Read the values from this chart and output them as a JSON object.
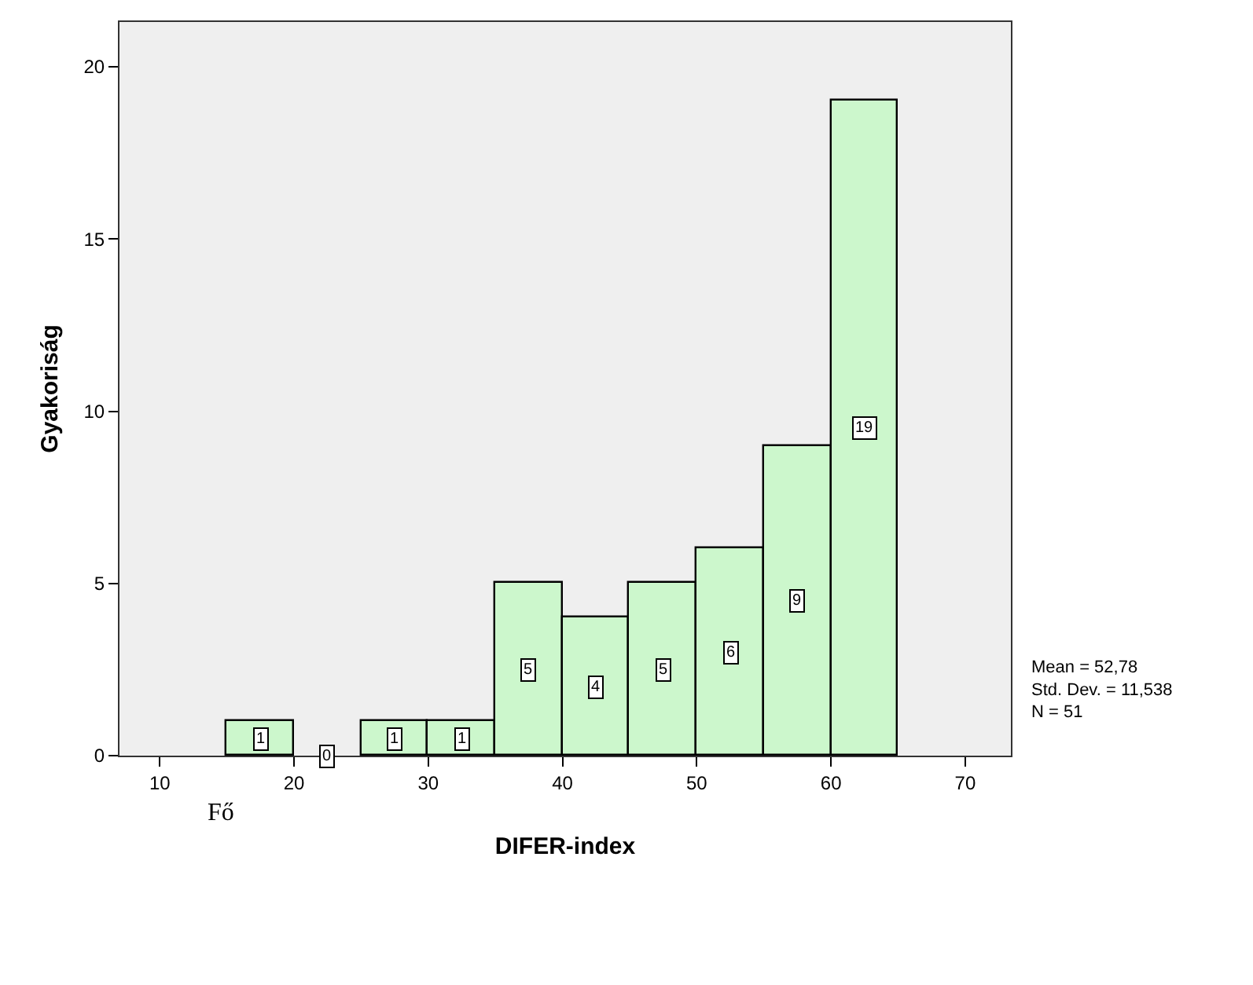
{
  "chart_data": {
    "type": "histogram",
    "xlabel": "DIFER-index",
    "ylabel": "Gyakoriság",
    "bins": [
      15,
      20,
      25,
      30,
      35,
      40,
      45,
      50,
      55,
      60,
      65
    ],
    "values": [
      1,
      0,
      1,
      1,
      5,
      4,
      5,
      6,
      9,
      19
    ],
    "color": "#ccf7cc",
    "data_labels": true,
    "xlim": [
      7,
      73.4
    ],
    "xticks": [
      10,
      20,
      30,
      40,
      50,
      60,
      70
    ],
    "ylim": [
      0,
      21.3
    ],
    "yticks": [
      0,
      5,
      10,
      15,
      20
    ],
    "grid": false,
    "legend": false,
    "annotations": [
      "Mean = 52,78\nStd. Dev. = 11,538\nN = 51",
      "Fő"
    ]
  }
}
